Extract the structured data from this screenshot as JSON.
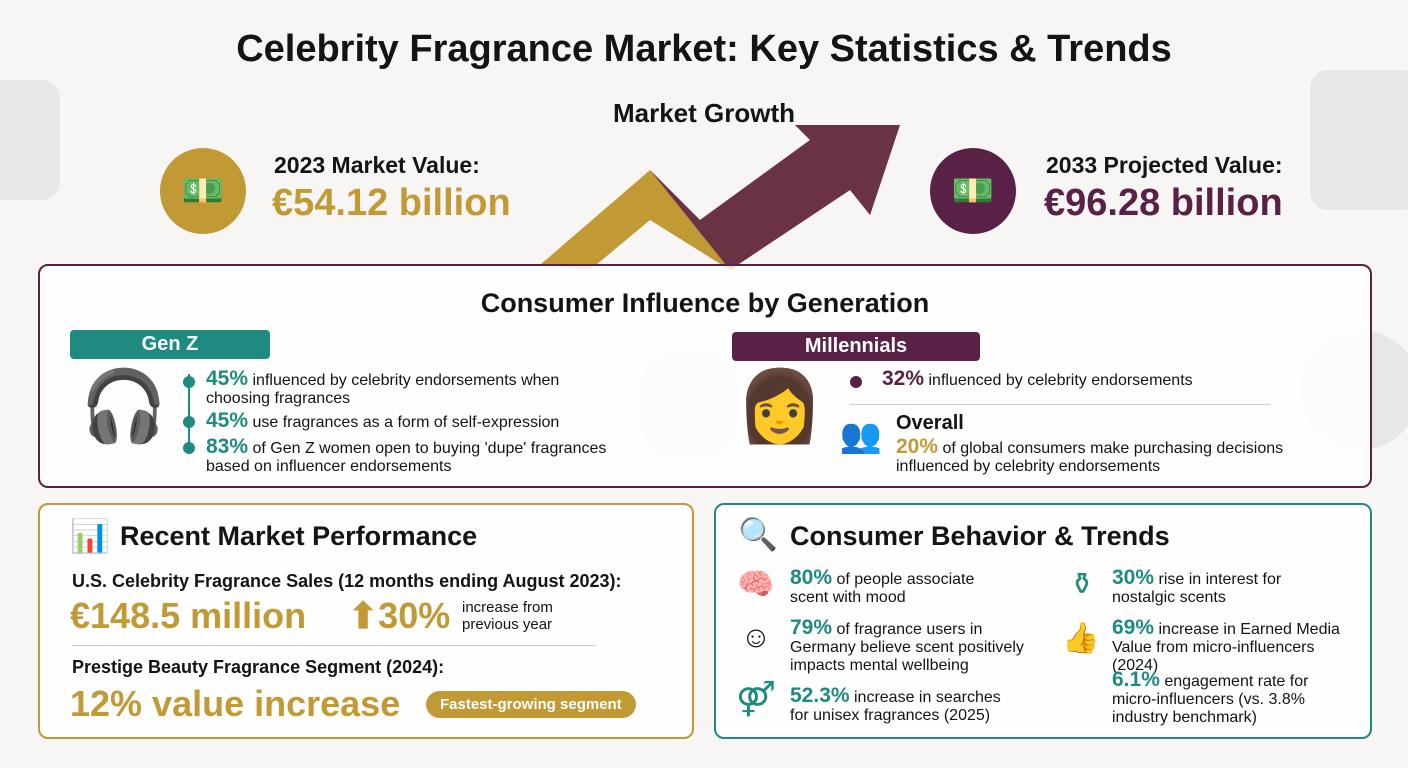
{
  "title": "Celebrity Fragrance Market: Key Statistics & Trends",
  "market_growth": {
    "title": "Market Growth",
    "current": {
      "label": "2023 Market Value:",
      "value": "€54.12 billion"
    },
    "projected": {
      "label": "2033 Projected Value:",
      "value": "€96.28 billion"
    }
  },
  "generation": {
    "title": "Consumer Influence by Generation",
    "genz": {
      "label": "Gen Z",
      "stats": [
        {
          "pct": "45%",
          "text": "influenced by celebrity endorsements when choosing fragrances"
        },
        {
          "pct": "45%",
          "text": "use fragrances as a form of self-expression"
        },
        {
          "pct": "83%",
          "text": "of Gen Z women open to buying 'dupe' fragrances based on influencer endorsements"
        }
      ]
    },
    "millennials": {
      "label": "Millennials",
      "stats": [
        {
          "pct": "32%",
          "text": "influenced by celebrity endorsements"
        }
      ]
    },
    "overall": {
      "label": "Overall",
      "pct": "20%",
      "text": "of global consumers make purchasing decisions influenced by celebrity endorsements"
    }
  },
  "performance": {
    "title": "Recent Market Performance",
    "us_label": "U.S. Celebrity Fragrance Sales (12 months ending August 2023):",
    "us_value": "€148.5 million",
    "us_growth": "30%",
    "us_growth_text": "increase from previous year",
    "prestige_label": "Prestige Beauty Fragrance Segment (2024):",
    "prestige_value": "12% value increase",
    "prestige_badge": "Fastest-growing segment"
  },
  "behavior": {
    "title": "Consumer Behavior & Trends",
    "items": [
      {
        "pct": "80%",
        "text": "of people associate scent with mood",
        "icon": "brain-icon"
      },
      {
        "pct": "79%",
        "text": "of fragrance users in Germany believe scent positively impacts mental wellbeing",
        "icon": "smile-leaf-icon"
      },
      {
        "pct": "52.3%",
        "text": "increase in searches for unisex fragrances (2025)",
        "icon": "gender-icon"
      },
      {
        "pct": "30%",
        "text": "rise in interest for nostalgic scents",
        "icon": "perfume-icon"
      },
      {
        "pct": "69%",
        "text": "increase in Earned Media Value from micro-influencers (2024)",
        "icon": "thumbs-up-icon"
      },
      {
        "pct": "6.1%",
        "text": "engagement rate for micro-influencers (vs. 3.8% industry benchmark)",
        "icon": ""
      }
    ]
  },
  "colors": {
    "gold": "#c19a36",
    "purple": "#5a2147",
    "teal": "#1f8a80"
  }
}
